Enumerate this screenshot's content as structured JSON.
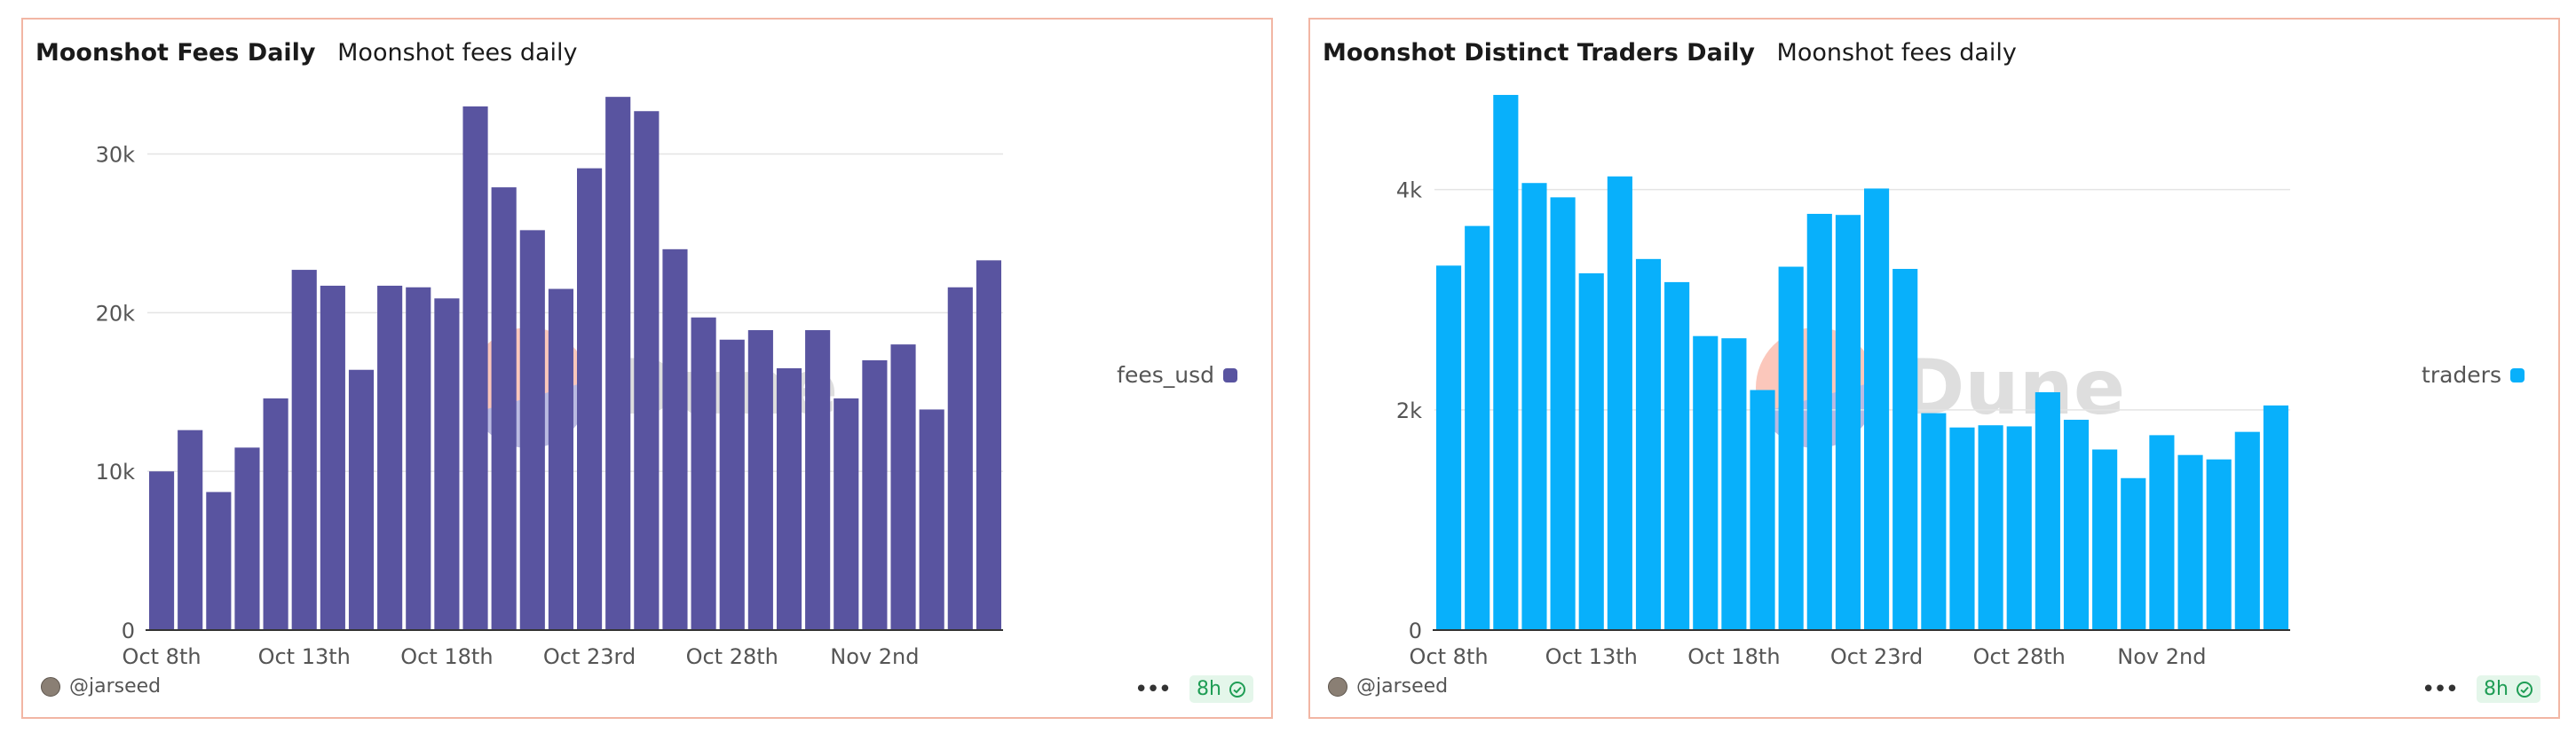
{
  "charts": [
    {
      "title": "Moonshot Fees Daily",
      "subtitle": "Moonshot fees daily",
      "author": "@jarseed",
      "status": "8h",
      "watermark": "Dune",
      "legend": "fees_usd",
      "series_color": "#5954a0"
    },
    {
      "title": "Moonshot Distinct Traders Daily",
      "subtitle": "Moonshot fees daily",
      "author": "@jarseed",
      "status": "8h",
      "watermark": "Dune",
      "legend": "traders",
      "series_color": "#08b0fb"
    }
  ],
  "chart_data": [
    {
      "type": "bar",
      "title": "Moonshot Fees Daily",
      "subtitle": "Moonshot fees daily",
      "categories": [
        "Oct 8th",
        "Oct 9th",
        "Oct 10th",
        "Oct 11th",
        "Oct 12th",
        "Oct 13th",
        "Oct 14th",
        "Oct 15th",
        "Oct 16th",
        "Oct 17th",
        "Oct 18th",
        "Oct 19th",
        "Oct 20th",
        "Oct 21st",
        "Oct 22nd",
        "Oct 23rd",
        "Oct 24th",
        "Oct 25th",
        "Oct 26th",
        "Oct 27th",
        "Oct 28th",
        "Oct 29th",
        "Oct 30th",
        "Oct 31st",
        "Nov 1st",
        "Nov 2nd",
        "Nov 3rd",
        "Nov 4th",
        "Nov 5th",
        "Nov 6th"
      ],
      "series": [
        {
          "name": "fees_usd",
          "values": [
            10000,
            12600,
            8700,
            11500,
            14600,
            22700,
            21700,
            16400,
            21700,
            21600,
            20900,
            33000,
            27900,
            25200,
            21500,
            29100,
            33600,
            32700,
            24000,
            19700,
            18300,
            18900,
            16500,
            18900,
            14600,
            17000,
            18000,
            13900,
            21600,
            23300
          ]
        }
      ],
      "xticks": [
        "Oct 8th",
        "Oct 13th",
        "Oct 18th",
        "Oct 23rd",
        "Oct 28th",
        "Nov 2nd"
      ],
      "xtick_index": [
        0,
        5,
        10,
        15,
        20,
        25
      ],
      "yticks": [
        0,
        10000,
        20000,
        30000
      ],
      "ytick_labels": [
        "0",
        "10k",
        "20k",
        "30k"
      ],
      "ylim": [
        0,
        34000
      ],
      "legend_position": "right",
      "grid": true
    },
    {
      "type": "bar",
      "title": "Moonshot Distinct Traders Daily",
      "subtitle": "Moonshot fees daily",
      "categories": [
        "Oct 8th",
        "Oct 9th",
        "Oct 10th",
        "Oct 11th",
        "Oct 12th",
        "Oct 13th",
        "Oct 14th",
        "Oct 15th",
        "Oct 16th",
        "Oct 17th",
        "Oct 18th",
        "Oct 19th",
        "Oct 20th",
        "Oct 21st",
        "Oct 22nd",
        "Oct 23rd",
        "Oct 24th",
        "Oct 25th",
        "Oct 26th",
        "Oct 27th",
        "Oct 28th",
        "Oct 29th",
        "Oct 30th",
        "Oct 31st",
        "Nov 1st",
        "Nov 2nd",
        "Nov 3rd",
        "Nov 4th",
        "Nov 5th",
        "Nov 6th"
      ],
      "series": [
        {
          "name": "traders",
          "values": [
            3310,
            3670,
            4860,
            4060,
            3930,
            3240,
            4120,
            3370,
            3160,
            2670,
            2650,
            2180,
            3300,
            3780,
            3770,
            4010,
            3280,
            1970,
            1840,
            1860,
            1850,
            2160,
            1910,
            1640,
            1380,
            1770,
            1590,
            1550,
            1800,
            2040
          ]
        }
      ],
      "xticks": [
        "Oct 8th",
        "Oct 13th",
        "Oct 18th",
        "Oct 23rd",
        "Oct 28th",
        "Nov 2nd"
      ],
      "xtick_index": [
        0,
        5,
        10,
        15,
        20,
        25
      ],
      "yticks": [
        0,
        2000,
        4000
      ],
      "ytick_labels": [
        "0",
        "2k",
        "4k"
      ],
      "ylim": [
        0,
        4900
      ],
      "legend_position": "right",
      "grid": true
    }
  ]
}
